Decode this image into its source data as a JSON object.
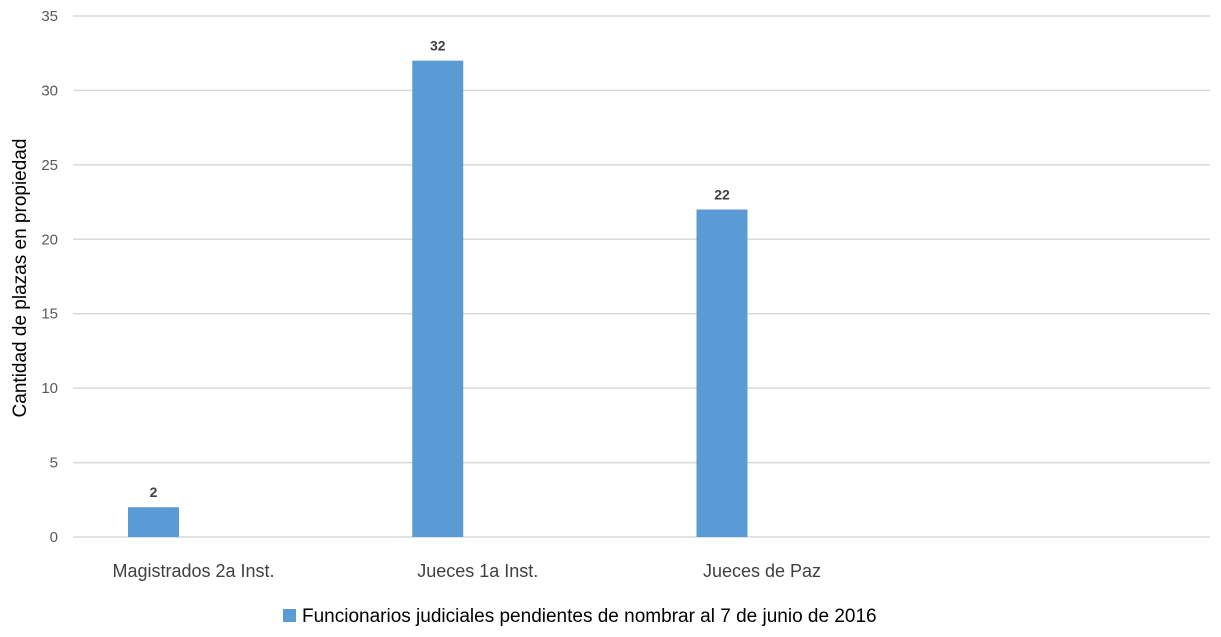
{
  "chart_data": {
    "type": "bar",
    "categories": [
      "Magistrados 2a Inst.",
      "Jueces 1a Inst.",
      "Jueces de Paz",
      ""
    ],
    "series": [
      {
        "name": "Funcionarios judiciales pendientes de nombrar al 7 de junio de 2016",
        "values": [
          2,
          32,
          22,
          null
        ],
        "color": "#5b9bd5"
      }
    ],
    "data_labels": [
      "2",
      "32",
      "22",
      ""
    ],
    "title": "",
    "xlabel": "",
    "ylabel": "Cantidad de  plazas en propiedad",
    "ylim": [
      0,
      35
    ],
    "yticks": [
      0,
      5,
      10,
      15,
      20,
      25,
      30,
      35
    ],
    "ytick_labels": [
      "0",
      "5",
      "10",
      "15",
      "20",
      "25",
      "30",
      "35"
    ],
    "grid": true,
    "gridline_color": "#d9d9d9",
    "legend_position": "bottom"
  }
}
